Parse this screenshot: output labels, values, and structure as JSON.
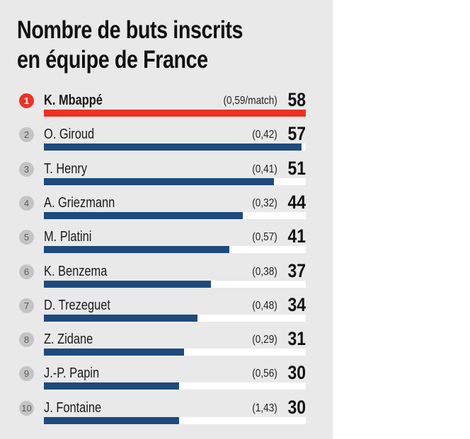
{
  "chart_data": {
    "type": "bar",
    "title": "Nombre de buts inscrits en équipe de France",
    "title_lines": [
      "Nombre de buts inscrits",
      "en équipe de France"
    ],
    "xlim": [
      0,
      58
    ],
    "categories": [
      "K. Mbappé",
      "O. Giroud",
      "T. Henry",
      "A. Griezmann",
      "M. Platini",
      "K. Benzema",
      "D. Trezeguet",
      "Z. Zidane",
      "J.-P. Papin",
      "J. Fontaine"
    ],
    "values": [
      58,
      57,
      51,
      44,
      41,
      37,
      34,
      31,
      30,
      30
    ],
    "rows": [
      {
        "rank": "1",
        "name": "K. Mbappé",
        "ratio": "(0,59/match)",
        "goals": 58
      },
      {
        "rank": "2",
        "name": "O. Giroud",
        "ratio": "(0,42)",
        "goals": 57
      },
      {
        "rank": "3",
        "name": "T. Henry",
        "ratio": "(0,41)",
        "goals": 51
      },
      {
        "rank": "4",
        "name": "A. Griezmann",
        "ratio": "(0,32)",
        "goals": 44
      },
      {
        "rank": "5",
        "name": "M. Platini",
        "ratio": "(0,57)",
        "goals": 41
      },
      {
        "rank": "6",
        "name": "K. Benzema",
        "ratio": "(0,38)",
        "goals": 37
      },
      {
        "rank": "7",
        "name": "D. Trezeguet",
        "ratio": "(0,48)",
        "goals": 34
      },
      {
        "rank": "8",
        "name": "Z. Zidane",
        "ratio": "(0,29)",
        "goals": 31
      },
      {
        "rank": "9",
        "name": "J.-P. Papin",
        "ratio": "(0,56)",
        "goals": 30
      },
      {
        "rank": "10",
        "name": "J. Fontaine",
        "ratio": "(1,43)",
        "goals": 30
      }
    ],
    "colors": {
      "highlight": "#ee3124",
      "bar": "#1e4a7c",
      "track": "#ffffff",
      "background": "#e9e9ea"
    }
  }
}
